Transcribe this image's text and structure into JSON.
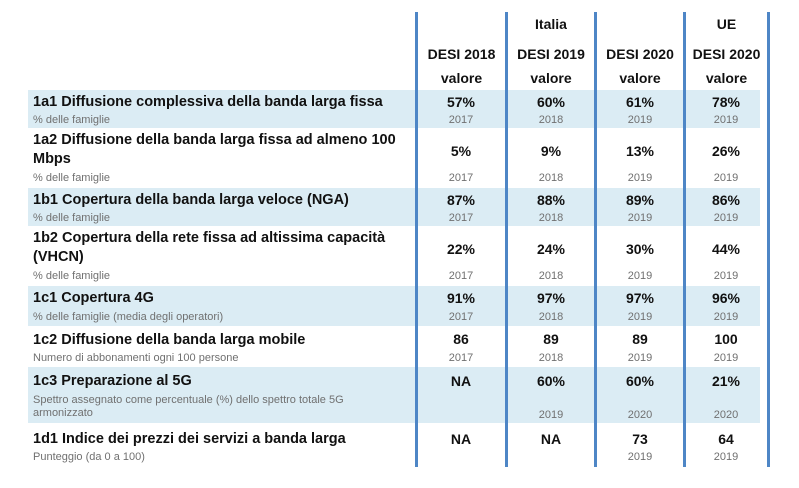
{
  "header": {
    "italia": "Italia",
    "ue": "UE",
    "columns": [
      "DESI 2018",
      "DESI 2019",
      "DESI 2020",
      "DESI 2020"
    ],
    "valore": "valore"
  },
  "rows": [
    {
      "name": "1a1 Diffusione complessiva della banda larga fissa",
      "sub": "% delle famiglie",
      "values": [
        "57%",
        "60%",
        "61%",
        "78%"
      ],
      "years": [
        "2017",
        "2018",
        "2019",
        "2019"
      ]
    },
    {
      "name": "1a2 Diffusione della banda larga fissa ad almeno 100 Mbps",
      "sub": "% delle famiglie",
      "values": [
        "5%",
        "9%",
        "13%",
        "26%"
      ],
      "years": [
        "2017",
        "2018",
        "2019",
        "2019"
      ]
    },
    {
      "name": "1b1 Copertura della banda larga veloce (NGA)",
      "sub": "% delle famiglie",
      "values": [
        "87%",
        "88%",
        "89%",
        "86%"
      ],
      "years": [
        "2017",
        "2018",
        "2019",
        "2019"
      ]
    },
    {
      "name": "1b2 Copertura della rete fissa ad altissima capacità (VHCN)",
      "sub": "% delle famiglie",
      "values": [
        "22%",
        "24%",
        "30%",
        "44%"
      ],
      "years": [
        "2017",
        "2018",
        "2019",
        "2019"
      ]
    },
    {
      "name": "1c1 Copertura 4G",
      "sub": "% delle famiglie (media degli operatori)",
      "values": [
        "91%",
        "97%",
        "97%",
        "96%"
      ],
      "years": [
        "2017",
        "2018",
        "2019",
        "2019"
      ]
    },
    {
      "name": "1c2 Diffusione della banda larga mobile",
      "sub": "Numero di abbonamenti ogni 100 persone",
      "values": [
        "86",
        "89",
        "89",
        "100"
      ],
      "years": [
        "2017",
        "2018",
        "2019",
        "2019"
      ]
    },
    {
      "name": "1c3 Preparazione al 5G",
      "sub": "Spettro assegnato come percentuale (%) dello spettro totale 5G armonizzato",
      "values": [
        "NA",
        "60%",
        "60%",
        "21%"
      ],
      "years": [
        "",
        "2019",
        "2020",
        "2020"
      ]
    },
    {
      "name": "1d1 Indice dei prezzi dei servizi a banda larga",
      "sub": "Punteggio (da 0 a 100)",
      "values": [
        "NA",
        "NA",
        "73",
        "64"
      ],
      "years": [
        "",
        "",
        "2019",
        "2019"
      ]
    }
  ]
}
